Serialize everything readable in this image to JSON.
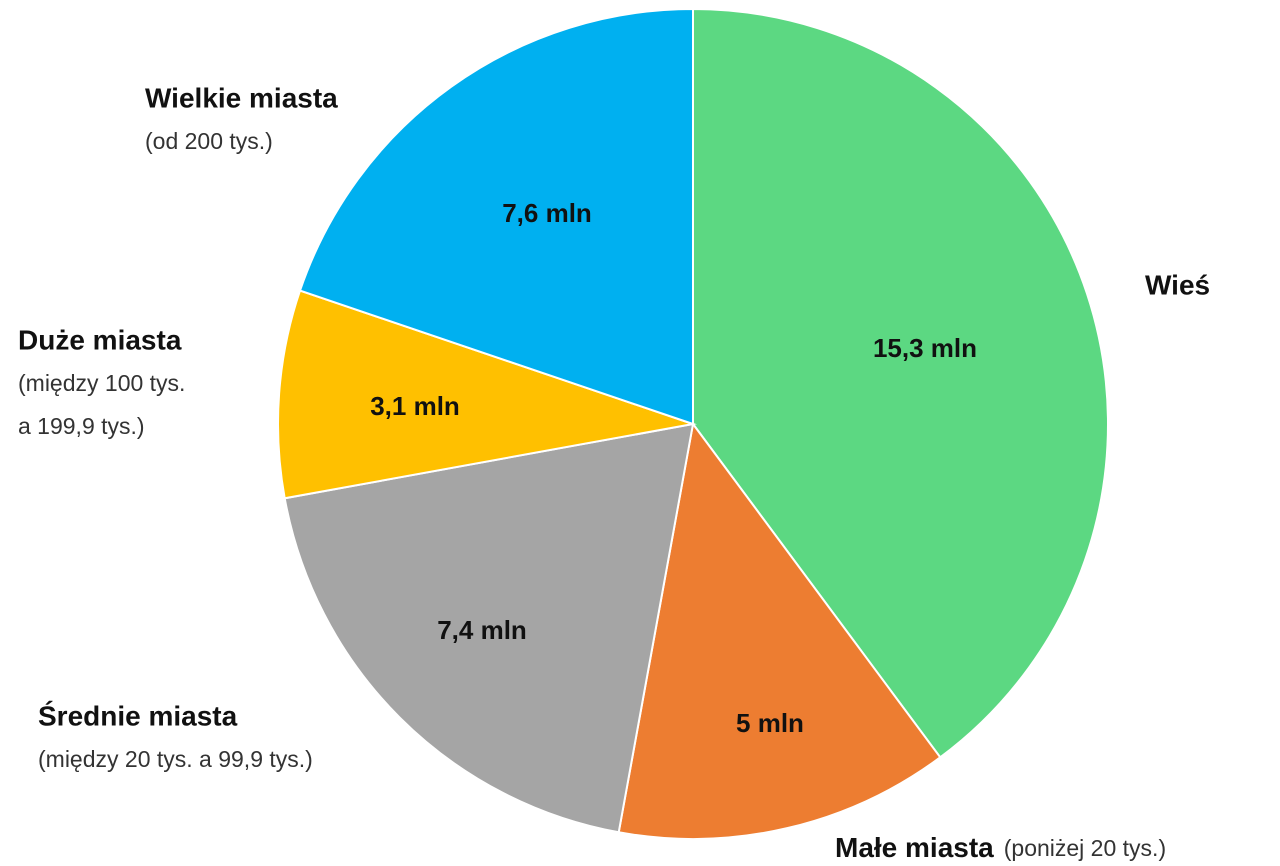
{
  "chart_data": {
    "type": "pie",
    "categories": [
      "Wieś",
      "Małe miasta",
      "Średnie miasta",
      "Duże miasta",
      "Wielkie miasta"
    ],
    "category_notes": [
      null,
      [
        "(poniżej 20 tys.)"
      ],
      [
        "(między 20 tys.  a 99,9 tys.)"
      ],
      [
        "(między 100 tys.",
        "a 199,9 tys.)"
      ],
      [
        "(od 200 tys.)"
      ]
    ],
    "values": [
      15.3,
      5,
      7.4,
      3.1,
      7.6
    ],
    "value_labels": [
      "15,3 mln",
      "5 mln",
      "7,4 mln",
      "3,1 mln",
      "7,6 mln"
    ],
    "colors": [
      "#5cd882",
      "#ed7d31",
      "#a5a5a5",
      "#ffc000",
      "#00b0f0"
    ]
  }
}
